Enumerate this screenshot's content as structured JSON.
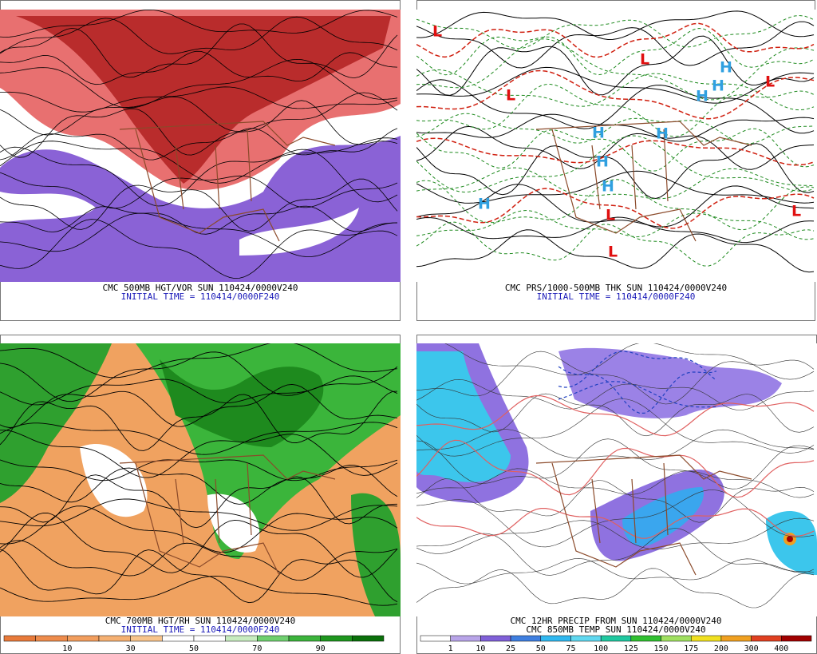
{
  "panels": [
    {
      "caption": "CMC 500MB HGT/VOR SUN 110424/0000V240",
      "initial_time": "INITIAL TIME = 110414/0000F240"
    },
    {
      "caption": "CMC PRS/1000-500MB THK SUN 110424/0000V240",
      "initial_time": "INITIAL TIME = 110414/0000F240",
      "centers": [
        "L",
        "L",
        "L",
        "L",
        "L",
        "L",
        "L",
        "H",
        "H",
        "H",
        "H",
        "H",
        "H",
        "H",
        "H"
      ]
    },
    {
      "caption": "CMC 700MB HGT/RH SUN 110424/0000V240",
      "initial_time": "INITIAL TIME = 110414/0000F240",
      "colorbar": [
        10,
        30,
        50,
        70,
        90
      ]
    },
    {
      "caption": "CMC 12HR PRECIP FROM SUN 110424/0000V240",
      "caption2": "CMC 850MB TEMP SUN 110424/0000V240",
      "colorbar": [
        1,
        10,
        25,
        50,
        75,
        100,
        125,
        150,
        175,
        200,
        300,
        400
      ]
    }
  ]
}
